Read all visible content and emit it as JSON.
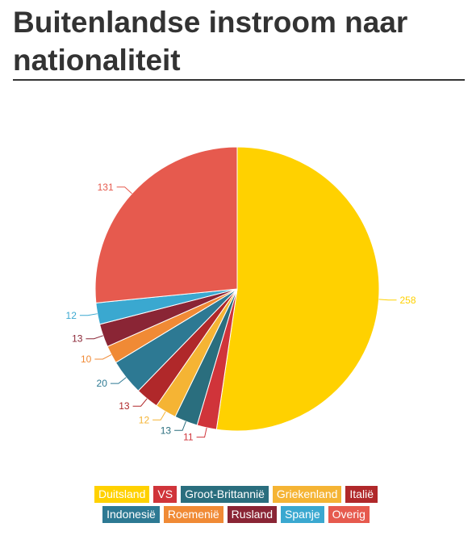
{
  "title": "Buitenlandse instroom naar nationaliteit",
  "chart_data": {
    "type": "pie",
    "title": "Buitenlandse instroom naar nationaliteit",
    "slices": [
      {
        "label": "Duitsland",
        "value": 258,
        "color": "#ffd100"
      },
      {
        "label": "VS",
        "value": 11,
        "color": "#d0343a"
      },
      {
        "label": "Groot-Brittannië",
        "value": 13,
        "color": "#2a6e7e"
      },
      {
        "label": "Griekenland",
        "value": 12,
        "color": "#f5b434"
      },
      {
        "label": "Italië",
        "value": 13,
        "color": "#b0282a"
      },
      {
        "label": "Indonesië",
        "value": 20,
        "color": "#2d7993"
      },
      {
        "label": "Roemenië",
        "value": 10,
        "color": "#f08a35"
      },
      {
        "label": "Rusland",
        "value": 13,
        "color": "#8a2535"
      },
      {
        "label": "Spanje",
        "value": 12,
        "color": "#3aa8d0"
      },
      {
        "label": "Overig",
        "value": 131,
        "color": "#e65a4e"
      }
    ],
    "legend_placement": "bottom"
  }
}
